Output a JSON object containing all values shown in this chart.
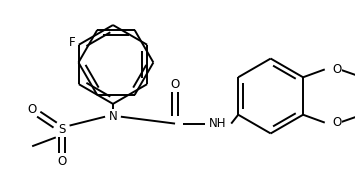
{
  "line_color": "#000000",
  "bg_color": "#ffffff",
  "line_width": 1.4,
  "font_size": 8.5,
  "figsize": [
    3.58,
    1.92
  ],
  "dpi": 100,
  "xlim": [
    0,
    358
  ],
  "ylim": [
    0,
    192
  ]
}
